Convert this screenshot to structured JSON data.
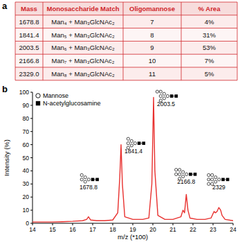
{
  "table": {
    "panel_label": "a",
    "header": [
      "Mass",
      "Monosaccharide Match",
      "Oligomannose",
      "% Area"
    ],
    "rows": [
      [
        "1678.8",
        "Man₄ + Man₃GlcNAc₂",
        "7",
        "4%"
      ],
      [
        "1841.4",
        "Man₅ + Man₃GlcNAc₂",
        "8",
        "31%"
      ],
      [
        "2003.5",
        "Man₆ + Man₃GlcNAc₂",
        "9",
        "53%"
      ],
      [
        "2166.8",
        "Man₇ + Man₃GlcNAc₂",
        "10",
        "7%"
      ],
      [
        "2329.0",
        "Man₈ + Man₃GlcNAc₂",
        "11",
        "5%"
      ]
    ]
  },
  "chart_data": {
    "type": "line",
    "panel_label": "b",
    "x_label": "m/z (*100)",
    "y_label": "Intensity (%)",
    "symbols": [
      {
        "label": "Mannose",
        "marker": "circle"
      },
      {
        "label": "N-acetylglucosamine",
        "marker": "square"
      }
    ],
    "x": [
      14.0,
      14.5,
      15.0,
      15.5,
      16.0,
      16.5,
      16.7,
      16.79,
      16.9,
      17.2,
      17.6,
      18.0,
      18.25,
      18.35,
      18.414,
      18.48,
      18.6,
      19.0,
      19.5,
      19.8,
      19.95,
      20.035,
      20.1,
      20.25,
      20.6,
      21.0,
      21.4,
      21.5,
      21.58,
      21.667,
      21.75,
      21.85,
      22.2,
      22.6,
      22.9,
      23.05,
      23.12,
      23.2,
      23.29,
      23.38,
      23.45,
      23.6,
      24.0
    ],
    "series": [
      {
        "color": "#e8302e",
        "values": [
          1,
          1,
          1,
          1.2,
          1.5,
          2,
          3,
          5,
          2.5,
          2,
          2,
          2.5,
          8,
          35,
          60,
          30,
          5,
          3,
          3,
          4,
          30,
          96,
          40,
          6,
          3,
          3,
          5,
          10,
          8,
          22,
          10,
          4,
          3,
          3,
          4,
          9,
          8,
          9,
          12,
          10,
          6,
          3,
          2
        ]
      }
    ],
    "xlim": [
      14,
      24
    ],
    "xticks": [
      14,
      15,
      16,
      17,
      18,
      19,
      20,
      21,
      22,
      23,
      24
    ],
    "ylim": [
      0,
      100
    ],
    "yticks": [
      0,
      10,
      20,
      30,
      40,
      50,
      60,
      70,
      80,
      90,
      100
    ],
    "annotations": [
      {
        "text": "1678.8",
        "x": 16.79
      },
      {
        "text": "1841.4",
        "x": 18.414
      },
      {
        "text": "2003.5",
        "x": 20.035
      },
      {
        "text": "2166.8",
        "x": 21.667
      },
      {
        "text": "2329",
        "x": 23.29
      }
    ]
  }
}
